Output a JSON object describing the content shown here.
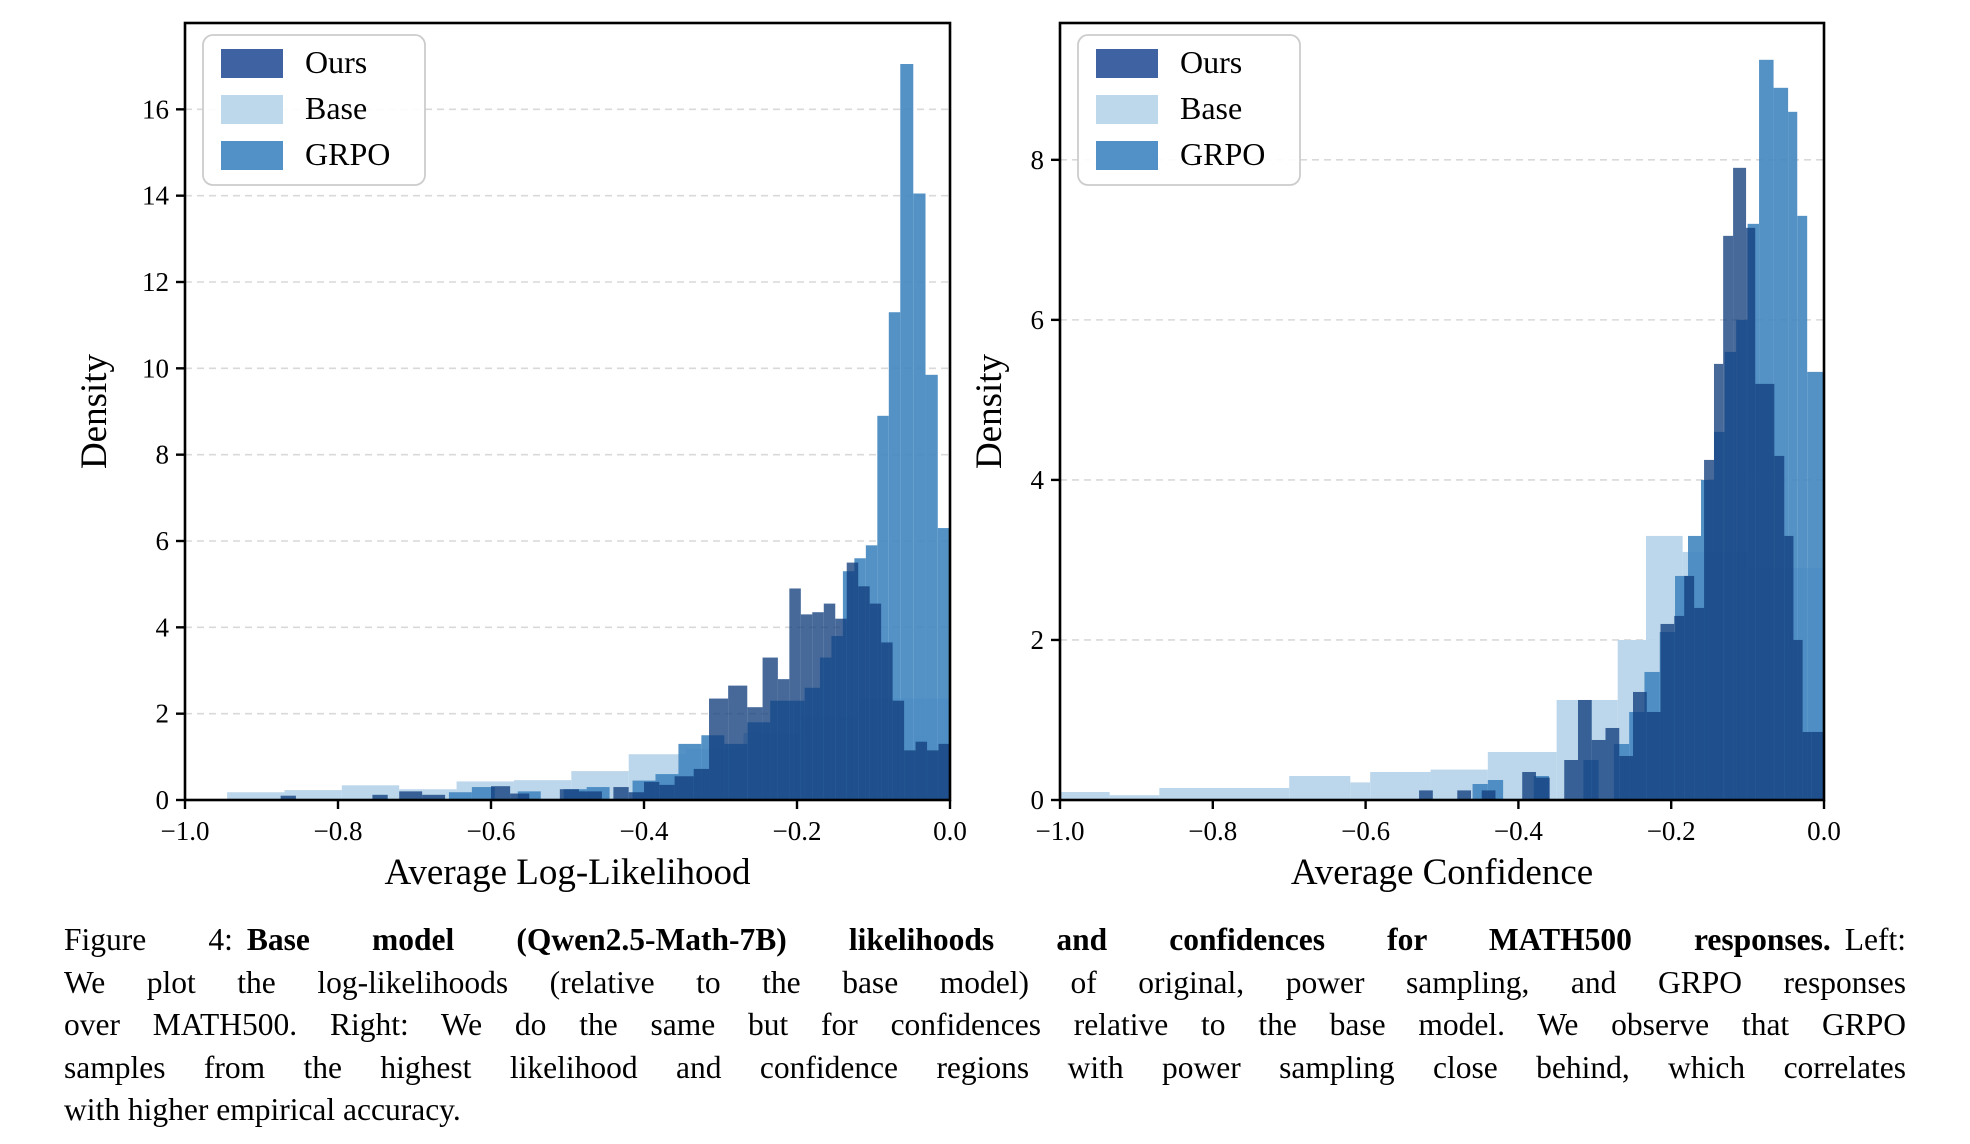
{
  "caption": {
    "line1_prefix": "Figure 4:",
    "line1_bold": "Base model (Qwen2.5-Math-7B) likelihoods and confidences for MATH500 responses.",
    "line1_suffix": "Left:",
    "line2": "We plot the log-likelihoods (relative to the base model) of original, power sampling, and GRPO responses",
    "line3": "over MATH500. Right: We do the same but for confidences relative to the base model. We observe that GRPO",
    "line4": "samples from the highest likelihood and confidence regions with power sampling close behind, which correlates",
    "line5": "with higher empirical accuracy."
  },
  "colors": {
    "base_fill": "#b7d4e9",
    "base_opacity": 0.93,
    "grpo_fill": "#4186c0",
    "grpo_opacity": 0.9,
    "ours_fill": "#123f7e",
    "ours_opacity": 0.78,
    "legend_ours": "#3e62a2",
    "legend_base": "#bdd7eb",
    "legend_grpo": "#5191c8",
    "grid": "#d9d9d9",
    "spine": "#000000",
    "legend_border": "#cccccc"
  },
  "chart_data": [
    {
      "type": "bar",
      "subtype": "overlaid-histogram",
      "xlabel": "Average Log-Likelihood",
      "ylabel": "Density",
      "xlim": [
        -1.0,
        0.0
      ],
      "ylim": [
        0,
        18.0
      ],
      "x_tick_values": [
        -1.0,
        -0.8,
        -0.6,
        -0.4,
        -0.2,
        0.0
      ],
      "x_tick_labels": [
        "−1.0",
        "−0.8",
        "−0.6",
        "−0.4",
        "−0.2",
        "0.0"
      ],
      "y_tick_values": [
        0,
        2,
        4,
        6,
        8,
        10,
        12,
        14,
        16
      ],
      "y_tick_labels": [
        "0",
        "2",
        "4",
        "6",
        "8",
        "10",
        "12",
        "14",
        "16"
      ],
      "legend": [
        "Ours",
        "Base",
        "GRPO"
      ],
      "series": [
        {
          "name": "Base",
          "bins": [
            [
              -0.945,
              -0.87,
              0.18
            ],
            [
              -0.87,
              -0.795,
              0.23
            ],
            [
              -0.795,
              -0.72,
              0.34
            ],
            [
              -0.72,
              -0.645,
              0.25
            ],
            [
              -0.645,
              -0.57,
              0.43
            ],
            [
              -0.57,
              -0.495,
              0.46
            ],
            [
              -0.495,
              -0.42,
              0.67
            ],
            [
              -0.42,
              -0.345,
              1.06
            ],
            [
              -0.345,
              -0.27,
              1.18
            ],
            [
              -0.27,
              -0.195,
              1.55
            ],
            [
              -0.195,
              -0.12,
              1.92
            ],
            [
              -0.12,
              0.0,
              2.35
            ]
          ]
        },
        {
          "name": "GRPO",
          "bins": [
            [
              -0.655,
              -0.625,
              0.18
            ],
            [
              -0.625,
              -0.595,
              0.3
            ],
            [
              -0.565,
              -0.535,
              0.2
            ],
            [
              -0.505,
              -0.475,
              0.25
            ],
            [
              -0.475,
              -0.445,
              0.3
            ],
            [
              -0.415,
              -0.385,
              0.45
            ],
            [
              -0.385,
              -0.355,
              0.6
            ],
            [
              -0.355,
              -0.325,
              1.3
            ],
            [
              -0.325,
              -0.295,
              1.5
            ],
            [
              -0.295,
              -0.265,
              1.3
            ],
            [
              -0.265,
              -0.235,
              1.8
            ],
            [
              -0.235,
              -0.205,
              2.3
            ],
            [
              -0.205,
              -0.19,
              2.3
            ],
            [
              -0.19,
              -0.17,
              2.6
            ],
            [
              -0.17,
              -0.155,
              3.3
            ],
            [
              -0.155,
              -0.14,
              3.8
            ],
            [
              -0.14,
              -0.125,
              5.3
            ],
            [
              -0.125,
              -0.11,
              5.6
            ],
            [
              -0.11,
              -0.095,
              5.9
            ],
            [
              -0.095,
              -0.08,
              8.9
            ],
            [
              -0.08,
              -0.065,
              11.3
            ],
            [
              -0.065,
              -0.048,
              17.05
            ],
            [
              -0.048,
              -0.032,
              14.05
            ],
            [
              -0.032,
              -0.016,
              9.85
            ],
            [
              -0.016,
              0.0,
              6.3
            ]
          ]
        },
        {
          "name": "Ours",
          "bins": [
            [
              -0.875,
              -0.855,
              0.1
            ],
            [
              -0.755,
              -0.735,
              0.12
            ],
            [
              -0.72,
              -0.69,
              0.2
            ],
            [
              -0.69,
              -0.66,
              0.12
            ],
            [
              -0.6,
              -0.575,
              0.32
            ],
            [
              -0.575,
              -0.55,
              0.15
            ],
            [
              -0.51,
              -0.485,
              0.25
            ],
            [
              -0.485,
              -0.455,
              0.2
            ],
            [
              -0.44,
              -0.42,
              0.3
            ],
            [
              -0.42,
              -0.4,
              0.18
            ],
            [
              -0.4,
              -0.38,
              0.42
            ],
            [
              -0.38,
              -0.36,
              0.35
            ],
            [
              -0.36,
              -0.335,
              0.55
            ],
            [
              -0.335,
              -0.315,
              0.72
            ],
            [
              -0.315,
              -0.29,
              2.35
            ],
            [
              -0.29,
              -0.265,
              2.65
            ],
            [
              -0.265,
              -0.245,
              2.15
            ],
            [
              -0.245,
              -0.225,
              3.3
            ],
            [
              -0.225,
              -0.21,
              2.8
            ],
            [
              -0.21,
              -0.195,
              4.9
            ],
            [
              -0.195,
              -0.18,
              4.3
            ],
            [
              -0.18,
              -0.165,
              4.35
            ],
            [
              -0.165,
              -0.15,
              4.55
            ],
            [
              -0.15,
              -0.135,
              4.2
            ],
            [
              -0.135,
              -0.12,
              5.5
            ],
            [
              -0.12,
              -0.105,
              4.95
            ],
            [
              -0.105,
              -0.09,
              4.55
            ],
            [
              -0.09,
              -0.075,
              3.65
            ],
            [
              -0.075,
              -0.06,
              2.3
            ],
            [
              -0.06,
              -0.045,
              1.15
            ],
            [
              -0.045,
              -0.03,
              1.35
            ],
            [
              -0.03,
              -0.015,
              1.15
            ],
            [
              -0.015,
              0.0,
              1.3
            ]
          ]
        }
      ]
    },
    {
      "type": "bar",
      "subtype": "overlaid-histogram",
      "xlabel": "Average Confidence",
      "ylabel": "Density",
      "xlim": [
        -1.0,
        0.0
      ],
      "ylim": [
        0,
        9.71
      ],
      "x_tick_values": [
        -1.0,
        -0.8,
        -0.6,
        -0.4,
        -0.2,
        0.0
      ],
      "x_tick_labels": [
        "−1.0",
        "−0.8",
        "−0.6",
        "−0.4",
        "−0.2",
        "0.0"
      ],
      "y_tick_values": [
        0,
        2,
        4,
        6,
        8
      ],
      "y_tick_labels": [
        "0",
        "2",
        "4",
        "6",
        "8"
      ],
      "legend": [
        "Ours",
        "Base",
        "GRPO"
      ],
      "series": [
        {
          "name": "Base",
          "bins": [
            [
              -1.0,
              -0.935,
              0.1
            ],
            [
              -0.935,
              -0.87,
              0.06
            ],
            [
              -0.87,
              -0.7,
              0.15
            ],
            [
              -0.7,
              -0.62,
              0.3
            ],
            [
              -0.62,
              -0.594,
              0.22
            ],
            [
              -0.594,
              -0.515,
              0.35
            ],
            [
              -0.515,
              -0.44,
              0.38
            ],
            [
              -0.44,
              -0.35,
              0.6
            ],
            [
              -0.35,
              -0.27,
              1.25
            ],
            [
              -0.27,
              -0.233,
              2.0
            ],
            [
              -0.233,
              -0.185,
              3.3
            ],
            [
              -0.185,
              -0.1,
              3.1
            ],
            [
              -0.1,
              0.0,
              2.9
            ]
          ]
        },
        {
          "name": "GRPO",
          "bins": [
            [
              -0.46,
              -0.44,
              0.2
            ],
            [
              -0.44,
              -0.42,
              0.25
            ],
            [
              -0.38,
              -0.36,
              0.3
            ],
            [
              -0.315,
              -0.295,
              0.5
            ],
            [
              -0.275,
              -0.255,
              0.7
            ],
            [
              -0.255,
              -0.235,
              1.1
            ],
            [
              -0.235,
              -0.215,
              1.6
            ],
            [
              -0.215,
              -0.195,
              2.1
            ],
            [
              -0.195,
              -0.178,
              2.8
            ],
            [
              -0.178,
              -0.161,
              3.3
            ],
            [
              -0.161,
              -0.144,
              4.0
            ],
            [
              -0.144,
              -0.13,
              4.6
            ],
            [
              -0.13,
              -0.115,
              5.6
            ],
            [
              -0.115,
              -0.1,
              6.0
            ],
            [
              -0.1,
              -0.085,
              7.2
            ],
            [
              -0.085,
              -0.066,
              9.25
            ],
            [
              -0.066,
              -0.047,
              8.9
            ],
            [
              -0.047,
              -0.035,
              8.6
            ],
            [
              -0.035,
              -0.022,
              7.3
            ],
            [
              -0.022,
              0.0,
              5.35
            ]
          ]
        },
        {
          "name": "Ours",
          "bins": [
            [
              -0.53,
              -0.512,
              0.12
            ],
            [
              -0.48,
              -0.462,
              0.12
            ],
            [
              -0.448,
              -0.43,
              0.12
            ],
            [
              -0.395,
              -0.377,
              0.35
            ],
            [
              -0.377,
              -0.359,
              0.28
            ],
            [
              -0.34,
              -0.322,
              0.5
            ],
            [
              -0.322,
              -0.304,
              1.25
            ],
            [
              -0.304,
              -0.286,
              0.75
            ],
            [
              -0.286,
              -0.268,
              0.9
            ],
            [
              -0.268,
              -0.25,
              0.55
            ],
            [
              -0.25,
              -0.232,
              1.35
            ],
            [
              -0.232,
              -0.214,
              1.1
            ],
            [
              -0.214,
              -0.196,
              2.2
            ],
            [
              -0.196,
              -0.183,
              2.3
            ],
            [
              -0.183,
              -0.17,
              2.8
            ],
            [
              -0.17,
              -0.157,
              2.4
            ],
            [
              -0.157,
              -0.144,
              4.25
            ],
            [
              -0.144,
              -0.132,
              5.45
            ],
            [
              -0.132,
              -0.119,
              7.05
            ],
            [
              -0.119,
              -0.102,
              7.9
            ],
            [
              -0.102,
              -0.09,
              7.15
            ],
            [
              -0.09,
              -0.065,
              5.2
            ],
            [
              -0.065,
              -0.052,
              4.3
            ],
            [
              -0.052,
              -0.04,
              3.3
            ],
            [
              -0.04,
              -0.028,
              2.0
            ],
            [
              -0.028,
              -0.016,
              0.85
            ],
            [
              -0.016,
              0.0,
              0.85
            ]
          ]
        }
      ]
    }
  ]
}
